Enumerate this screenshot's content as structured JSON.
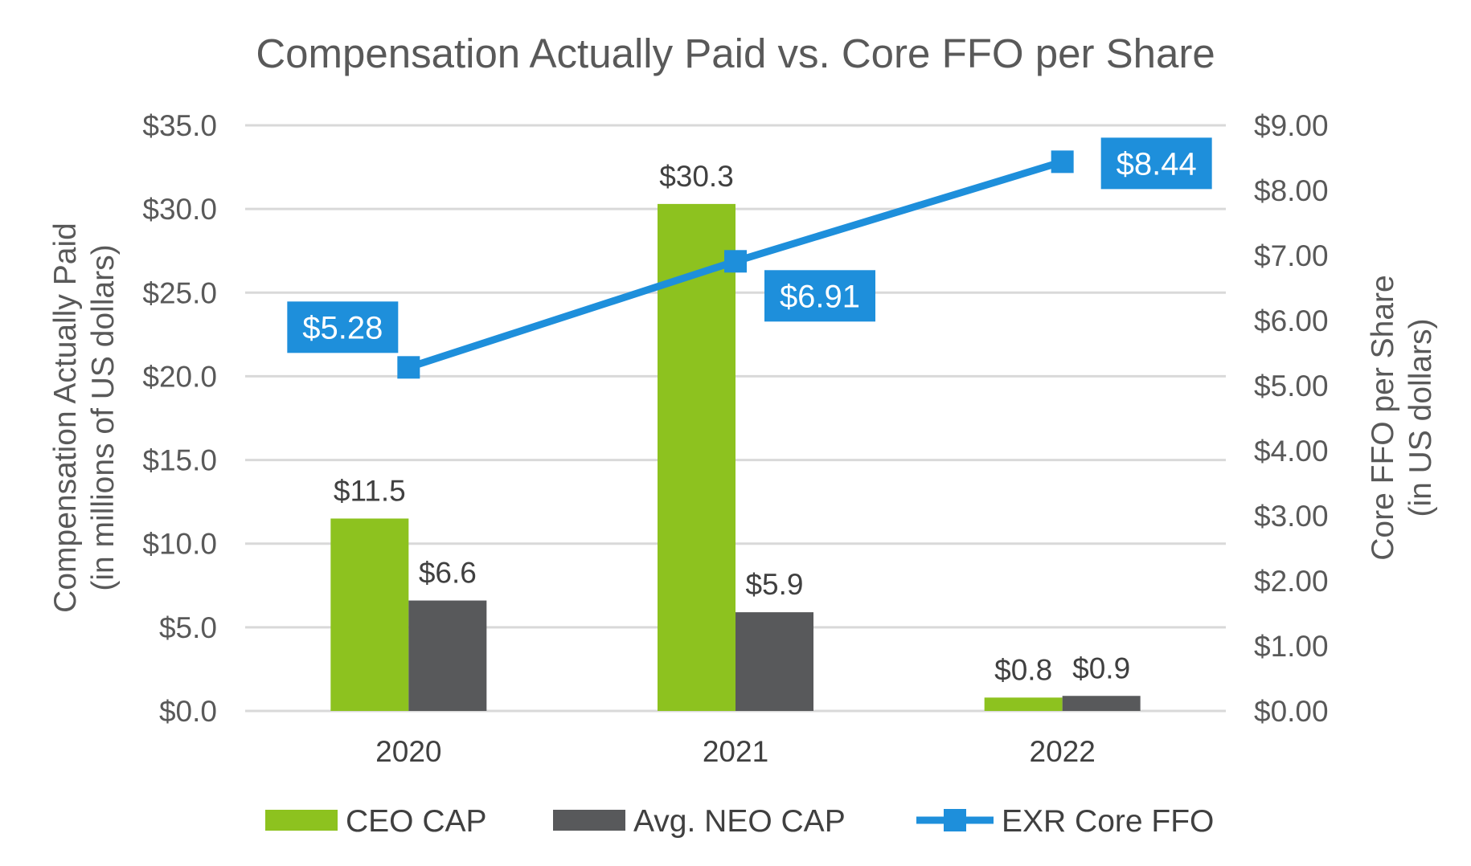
{
  "chart_data": {
    "type": "bar",
    "title": "Compensation Actually Paid vs. Core FFO per Share",
    "categories": [
      "2020",
      "2021",
      "2022"
    ],
    "left_axis": {
      "label_line1": "Compensation Actually Paid",
      "label_line2": "(in millions of US dollars)",
      "ylim": [
        0,
        35
      ],
      "ticks": [
        "$0.0",
        "$5.0",
        "$10.0",
        "$15.0",
        "$20.0",
        "$25.0",
        "$30.0",
        "$35.0"
      ]
    },
    "right_axis": {
      "label_line1": "Core FFO per Share",
      "label_line2": "(in US dollars)",
      "ylim": [
        0,
        9
      ],
      "ticks": [
        "$0.00",
        "$1.00",
        "$2.00",
        "$3.00",
        "$4.00",
        "$5.00",
        "$6.00",
        "$7.00",
        "$8.00",
        "$9.00"
      ]
    },
    "series": [
      {
        "name": "CEO CAP",
        "type": "bar",
        "axis": "left",
        "color": "#8DC21F",
        "values": [
          11.5,
          30.3,
          0.8
        ],
        "labels": [
          "$11.5",
          "$30.3",
          "$0.8"
        ]
      },
      {
        "name": "Avg. NEO CAP",
        "type": "bar",
        "axis": "left",
        "color": "#58595B",
        "values": [
          6.6,
          5.9,
          0.9
        ],
        "labels": [
          "$6.6",
          "$5.9",
          "$0.9"
        ]
      },
      {
        "name": "EXR Core FFO",
        "type": "line",
        "axis": "right",
        "color": "#1E8FDB",
        "values": [
          5.28,
          6.91,
          8.44
        ],
        "labels": [
          "$5.28",
          "$6.91",
          "$8.44"
        ]
      }
    ],
    "legend_position": "bottom",
    "grid": true
  }
}
